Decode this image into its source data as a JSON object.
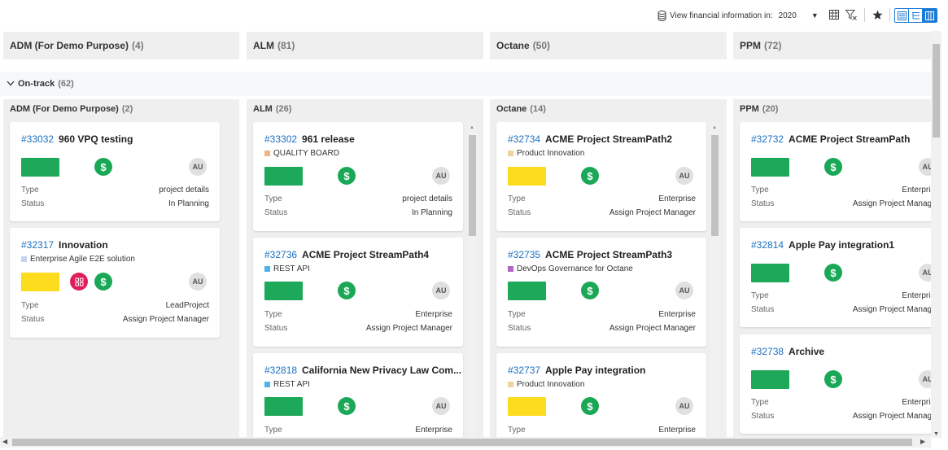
{
  "toolbar": {
    "financial_label": "View financial information in:",
    "year": "2020",
    "icons": [
      "database-icon",
      "grid-icon",
      "filter-icon",
      "star-icon",
      "list-view-icon",
      "tree-view-icon",
      "board-view-icon"
    ]
  },
  "columns": [
    {
      "name": "ADM (For Demo Purpose)",
      "count": "(4)"
    },
    {
      "name": "ALM",
      "count": "(81)"
    },
    {
      "name": "Octane",
      "count": "(50)"
    },
    {
      "name": "PPM",
      "count": "(72)"
    }
  ],
  "group": {
    "name": "On-track",
    "count": "(62)"
  },
  "lanes": [
    {
      "name": "ADM (For Demo Purpose)",
      "count": "(2)"
    },
    {
      "name": "ALM",
      "count": "(26)"
    },
    {
      "name": "Octane",
      "count": "(14)"
    },
    {
      "name": "PPM",
      "count": "(20)"
    }
  ],
  "cards": {
    "c33032": {
      "id": "#33032",
      "name": "960 VPQ testing",
      "avatar": "AU",
      "type_label": "Type",
      "type": "project details",
      "status_label": "Status",
      "status": "In Planning"
    },
    "c32317": {
      "id": "#32317",
      "name": "Innovation",
      "tag": "Enterprise Agile E2E solution",
      "avatar": "AU",
      "type_label": "Type",
      "type": "LeadProject",
      "status_label": "Status",
      "status": "Assign Project Manager"
    },
    "c33302": {
      "id": "#33302",
      "name": "961 release",
      "tag": "QUALITY BOARD",
      "avatar": "AU",
      "type_label": "Type",
      "type": "project details",
      "status_label": "Status",
      "status": "In Planning"
    },
    "c32736": {
      "id": "#32736",
      "name": "ACME Project StreamPath4",
      "tag": "REST API",
      "avatar": "AU",
      "type_label": "Type",
      "type": "Enterprise",
      "status_label": "Status",
      "status": "Assign Project Manager"
    },
    "c32818": {
      "id": "#32818",
      "name": "California New Privacy Law Com...",
      "tag": "REST API",
      "avatar": "AU",
      "type_label": "Type",
      "type": "Enterprise"
    },
    "c32734": {
      "id": "#32734",
      "name": "ACME Project StreamPath2",
      "tag": "Product Innovation",
      "avatar": "AU",
      "type_label": "Type",
      "type": "Enterprise",
      "status_label": "Status",
      "status": "Assign Project Manager"
    },
    "c32735": {
      "id": "#32735",
      "name": "ACME Project StreamPath3",
      "tag": "DevOps Governance for Octane",
      "avatar": "AU",
      "type_label": "Type",
      "type": "Enterprise",
      "status_label": "Status",
      "status": "Assign Project Manager"
    },
    "c32737": {
      "id": "#32737",
      "name": "Apple Pay integration",
      "tag": "Product Innovation",
      "avatar": "AU",
      "type_label": "Type",
      "type": "Enterprise"
    },
    "c32732": {
      "id": "#32732",
      "name": "ACME Project StreamPath",
      "avatar": "AU",
      "type_label": "Type",
      "type": "Enterprise",
      "status_label": "Status",
      "status": "Assign Project Manager"
    },
    "c32814": {
      "id": "#32814",
      "name": "Apple Pay integration1",
      "avatar": "AU",
      "type_label": "Type",
      "type": "Enterprise",
      "status_label": "Status",
      "status": "Assign Project Manager"
    },
    "c32738": {
      "id": "#32738",
      "name": "Archive",
      "avatar": "AU",
      "type_label": "Type",
      "type": "Enterprise",
      "status_label": "Status",
      "status": "Assign Project Manager"
    }
  },
  "colors": {
    "health_green": "#1ea85a",
    "health_yellow": "#fcdc1c",
    "link_blue": "#1b6fc2",
    "accent_blue": "#1b7ad4",
    "tag_quality": "#f2b28a",
    "tag_agile": "#c5d3f2",
    "tag_rest": "#4fb3e8",
    "tag_product": "#ecd49a",
    "tag_devops": "#b267c0"
  }
}
